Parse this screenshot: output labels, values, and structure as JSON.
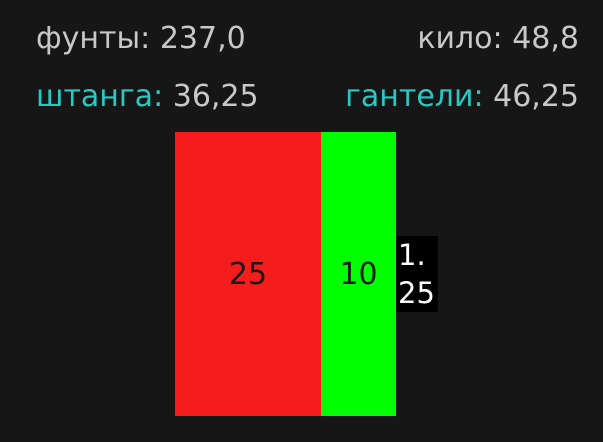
{
  "stats": {
    "pounds": {
      "label": "фунты:",
      "value": "237,0"
    },
    "kilos": {
      "label": "кило:",
      "value": "48,8"
    },
    "bar": {
      "label": "штанга:",
      "value": "36,25"
    },
    "dumbbell": {
      "label": "гантели:",
      "value": "46,25"
    }
  },
  "colors": {
    "background": "#161616",
    "text": "#c8c8c8",
    "accent": "#29c9c3",
    "plate_25": "#f41c1c",
    "plate_10": "#00ff00",
    "plate_125": "#000000"
  },
  "plates": [
    {
      "label": "25",
      "color": "#f41c1c"
    },
    {
      "label": "10",
      "color": "#00ff00"
    },
    {
      "label_line1": "1.",
      "label_line2": "25",
      "color": "#000000"
    }
  ]
}
